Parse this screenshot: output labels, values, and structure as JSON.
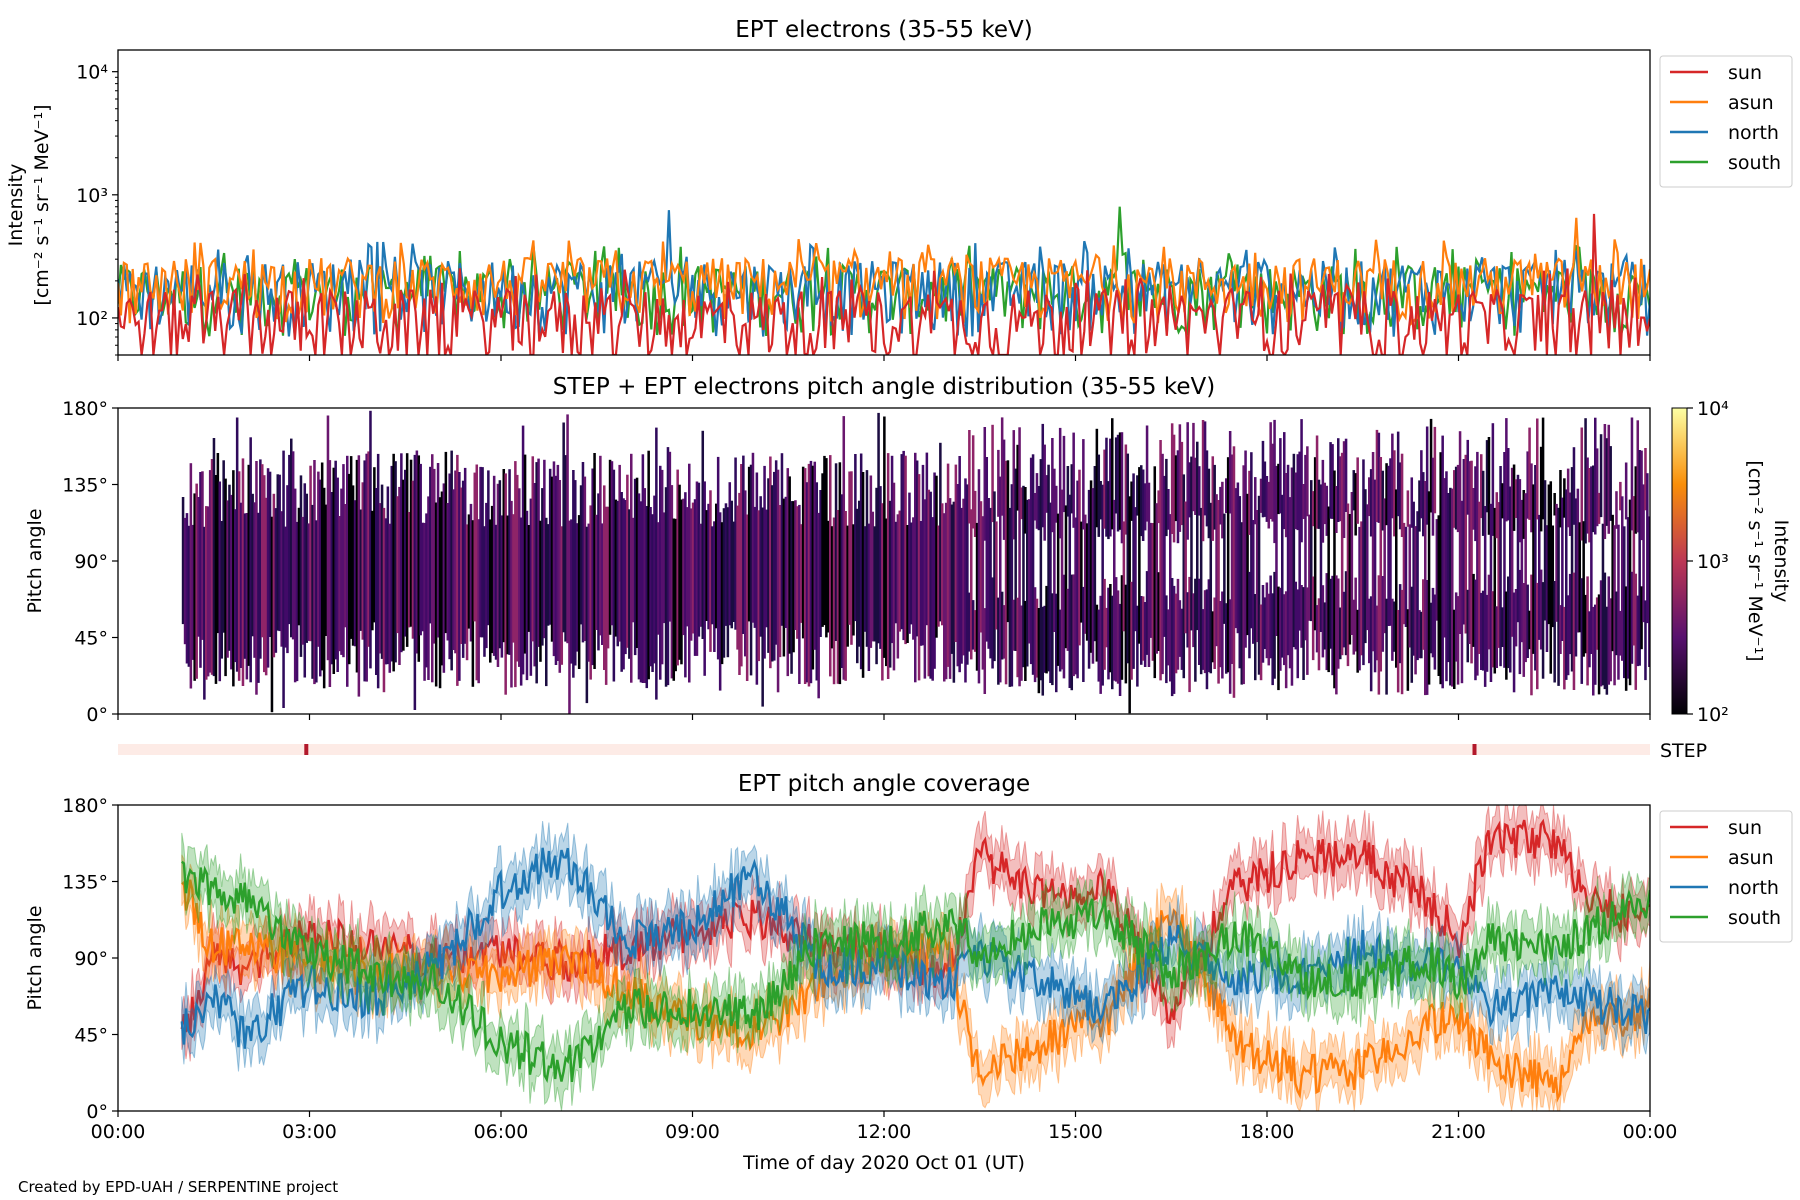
{
  "footer": "Created by EPD-UAH / SERPENTINE project",
  "colors": {
    "sun": "#d62728",
    "asun": "#ff7f0e",
    "north": "#1f77b4",
    "south": "#2ca02c",
    "step_bar": "#fdebe6",
    "step_tick": "#b2182b"
  },
  "chart_data": [
    {
      "type": "line",
      "title": "EPT electrons (35-55 keV)",
      "ylabel": "Intensity",
      "yunit": "[cm⁻² s⁻¹ sr⁻¹ MeV⁻¹]",
      "yscale": "log",
      "ylim": [
        50,
        15000
      ],
      "yticks": [
        {
          "label": "10²",
          "value": 100
        },
        {
          "label": "10³",
          "value": 1000
        },
        {
          "label": "10⁴",
          "value": 10000
        }
      ],
      "xlim_hours": [
        0,
        24
      ],
      "legend": {
        "placement": "upper right, outside"
      },
      "series": [
        {
          "name": "south",
          "color": "#2ca02c",
          "typical": 170,
          "spread": 100,
          "max": 800
        },
        {
          "name": "north",
          "color": "#1f77b4",
          "typical": 180,
          "spread": 110,
          "max": 750
        },
        {
          "name": "asun",
          "color": "#ff7f0e",
          "typical": 200,
          "spread": 110,
          "max": 650
        },
        {
          "name": "sun",
          "color": "#d62728",
          "typical": 100,
          "spread": 70,
          "max": 700
        }
      ]
    },
    {
      "type": "heatmap",
      "title": "STEP + EPT electrons pitch angle distribution (35-55 keV)",
      "ylabel": "Pitch angle",
      "ylim": [
        0,
        180
      ],
      "yticks": [
        "0°",
        "45°",
        "90°",
        "135°",
        "180°"
      ],
      "xlim_hours": [
        0,
        24
      ],
      "data_start_hour": 1.0,
      "colorbar": {
        "label": "Intensity",
        "unit": "[cm⁻² s⁻¹ sr⁻¹ MeV⁻¹]",
        "scale": "log",
        "range": [
          100,
          10000
        ],
        "ticks": [
          "10²",
          "10³",
          "10⁴"
        ],
        "colormap": "inferno"
      }
    },
    {
      "type": "bar",
      "label": "STEP",
      "marks_hours": [
        2.95,
        21.25
      ]
    },
    {
      "type": "line",
      "title": "EPT pitch angle coverage",
      "ylabel": "Pitch angle",
      "xlabel": "Time of day 2020 Oct 01 (UT)",
      "ylim": [
        0,
        180
      ],
      "yticks": [
        "0°",
        "45°",
        "90°",
        "135°",
        "180°"
      ],
      "xlim_hours": [
        0,
        24
      ],
      "xticks": [
        "00:00",
        "03:00",
        "06:00",
        "09:00",
        "12:00",
        "15:00",
        "18:00",
        "21:00",
        "00:00"
      ],
      "data_start_hour": 1.0,
      "legend": {
        "placement": "upper right, outside"
      },
      "band_halfwidth_deg": 15,
      "series": [
        {
          "name": "sun",
          "color": "#d62728",
          "x": [
            1.0,
            1.5,
            2.0,
            3.0,
            4.0,
            5.0,
            6.0,
            7.0,
            8.0,
            9.0,
            10.0,
            11.0,
            12.0,
            13.0,
            13.5,
            14.5,
            15.5,
            16.5,
            17.5,
            18.5,
            19.5,
            20.5,
            21.0,
            21.5,
            22.5,
            23.0,
            24.0
          ],
          "y": [
            42,
            90,
            85,
            105,
            95,
            90,
            95,
            88,
            95,
            105,
            115,
            95,
            95,
            80,
            150,
            125,
            130,
            60,
            130,
            150,
            150,
            125,
            100,
            160,
            160,
            125,
            110
          ]
        },
        {
          "name": "asun",
          "color": "#ff7f0e",
          "x": [
            1.0,
            1.5,
            2.0,
            3.0,
            4.0,
            5.0,
            6.0,
            7.0,
            8.0,
            9.0,
            10.0,
            11.0,
            12.0,
            13.0,
            13.5,
            14.5,
            15.5,
            16.5,
            17.5,
            18.5,
            19.5,
            20.5,
            21.0,
            21.5,
            22.5,
            23.0,
            24.0
          ],
          "y": [
            135,
            95,
            100,
            85,
            80,
            85,
            80,
            90,
            70,
            55,
            45,
            75,
            90,
            95,
            20,
            40,
            55,
            120,
            40,
            20,
            25,
            50,
            55,
            30,
            15,
            50,
            60
          ]
        },
        {
          "name": "north",
          "color": "#1f77b4",
          "x": [
            1.0,
            1.5,
            2.0,
            3.0,
            4.0,
            5.0,
            6.0,
            7.0,
            8.0,
            9.0,
            10.0,
            11.0,
            12.0,
            13.0,
            13.5,
            14.5,
            15.5,
            16.5,
            17.5,
            18.5,
            19.5,
            20.5,
            21.0,
            21.5,
            22.5,
            23.0,
            24.0
          ],
          "y": [
            50,
            65,
            45,
            75,
            65,
            85,
            130,
            150,
            100,
            110,
            140,
            85,
            85,
            75,
            90,
            75,
            60,
            100,
            80,
            80,
            95,
            85,
            90,
            60,
            70,
            65,
            55
          ]
        },
        {
          "name": "south",
          "color": "#2ca02c",
          "x": [
            1.0,
            1.5,
            2.0,
            3.0,
            4.0,
            5.0,
            6.0,
            7.0,
            8.0,
            9.0,
            10.0,
            11.0,
            12.0,
            13.0,
            13.5,
            14.5,
            15.5,
            16.5,
            17.5,
            18.5,
            19.5,
            20.5,
            21.0,
            21.5,
            22.5,
            23.0,
            24.0
          ],
          "y": [
            140,
            130,
            125,
            95,
            80,
            75,
            40,
            25,
            60,
            60,
            55,
            100,
            100,
            110,
            95,
            110,
            115,
            80,
            105,
            80,
            75,
            90,
            75,
            100,
            95,
            105,
            125
          ]
        }
      ]
    }
  ]
}
